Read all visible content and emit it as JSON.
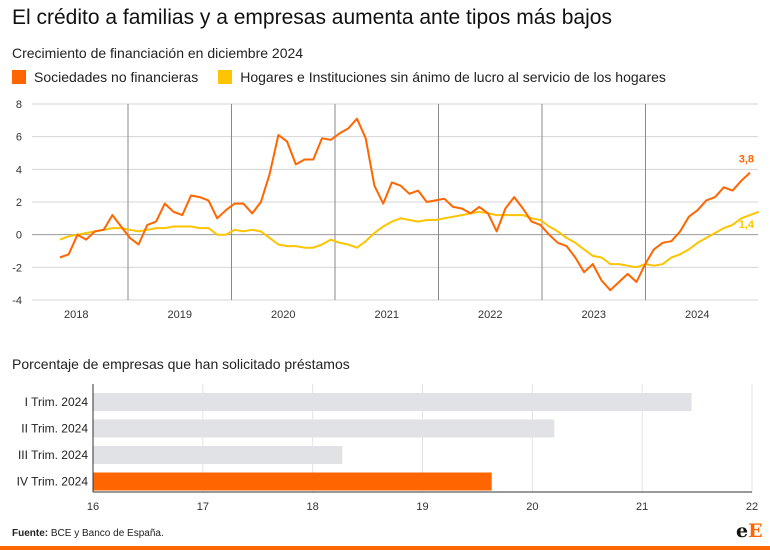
{
  "title": "El crédito a familias y a empresas aumenta ante tipos más bajos",
  "colors": {
    "orange": "#ff6600",
    "yellow": "#ffc400",
    "grey": "#e0e2e6"
  },
  "footer": {
    "source_label": "Fuente:",
    "source_text": "BCE y Banco de España."
  },
  "logo": {
    "text_e": "e",
    "text_E": "E"
  },
  "chart_data": [
    {
      "type": "line",
      "title": "Crecimiento de financiación en diciembre 2024",
      "xlabel": "",
      "ylabel": "",
      "ylim": [
        -4,
        8
      ],
      "yticks": [
        -4,
        -2,
        0,
        2,
        4,
        6,
        8
      ],
      "year_labels": [
        "2018",
        "2019",
        "2020",
        "2021",
        "2022",
        "2023",
        "2024"
      ],
      "grid": "horizontal lines and vertical year separators",
      "legend": "top-left",
      "series": [
        {
          "name": "Sociedades no financieras",
          "color": "#ff6600",
          "end_label": "3,8",
          "values": [
            -1.4,
            -1.2,
            0.0,
            -0.3,
            0.2,
            0.3,
            1.2,
            0.5,
            -0.2,
            -0.6,
            0.6,
            0.8,
            1.9,
            1.4,
            1.2,
            2.4,
            2.3,
            2.1,
            1.0,
            1.5,
            1.9,
            1.9,
            1.3,
            2.0,
            3.7,
            6.1,
            5.7,
            4.3,
            4.6,
            4.6,
            5.9,
            5.8,
            6.2,
            6.5,
            7.1,
            5.9,
            3.0,
            1.9,
            3.2,
            3.0,
            2.5,
            2.7,
            2.0,
            2.1,
            2.2,
            1.7,
            1.6,
            1.3,
            1.7,
            1.3,
            0.2,
            1.6,
            2.3,
            1.6,
            0.8,
            0.6,
            0.0,
            -0.5,
            -0.7,
            -1.4,
            -2.3,
            -1.8,
            -2.8,
            -3.4,
            -2.9,
            -2.4,
            -2.9,
            -1.8,
            -0.9,
            -0.5,
            -0.4,
            0.2,
            1.1,
            1.5,
            2.1,
            2.3,
            2.9,
            2.7,
            3.3,
            3.8
          ]
        },
        {
          "name": "Hogares e Instituciones sin ánimo de lucro al servicio de los hogares",
          "color": "#ffc400",
          "end_label": "1,4",
          "values": [
            -0.3,
            -0.1,
            0.0,
            0.1,
            0.2,
            0.3,
            0.4,
            0.4,
            0.3,
            0.2,
            0.3,
            0.4,
            0.4,
            0.5,
            0.5,
            0.5,
            0.4,
            0.4,
            0.0,
            0.0,
            0.3,
            0.2,
            0.3,
            0.2,
            -0.2,
            -0.6,
            -0.7,
            -0.7,
            -0.8,
            -0.8,
            -0.6,
            -0.3,
            -0.5,
            -0.6,
            -0.8,
            -0.4,
            0.1,
            0.5,
            0.8,
            1.0,
            0.9,
            0.8,
            0.9,
            0.9,
            1.0,
            1.1,
            1.2,
            1.3,
            1.4,
            1.3,
            1.2,
            1.2,
            1.2,
            1.2,
            1.0,
            0.9,
            0.5,
            0.2,
            -0.2,
            -0.5,
            -0.9,
            -1.3,
            -1.4,
            -1.8,
            -1.8,
            -1.9,
            -2.0,
            -1.8,
            -1.9,
            -1.8,
            -1.4,
            -1.2,
            -0.9,
            -0.5,
            -0.2,
            0.1,
            0.4,
            0.6,
            1.0,
            1.2,
            1.4
          ]
        }
      ]
    },
    {
      "type": "bar",
      "title": "Porcentaje de empresas que han solicitado préstamos",
      "orientation": "horizontal",
      "categories": [
        "I Trim. 2024",
        "II Trim. 2024",
        "III Trim. 2024",
        "IV Trim. 2024"
      ],
      "values": [
        21.45,
        20.2,
        18.27,
        19.63
      ],
      "highlight": [
        false,
        false,
        false,
        true
      ],
      "xlim": [
        16,
        22
      ],
      "xticks": [
        16,
        17,
        18,
        19,
        20,
        21,
        22
      ]
    }
  ]
}
